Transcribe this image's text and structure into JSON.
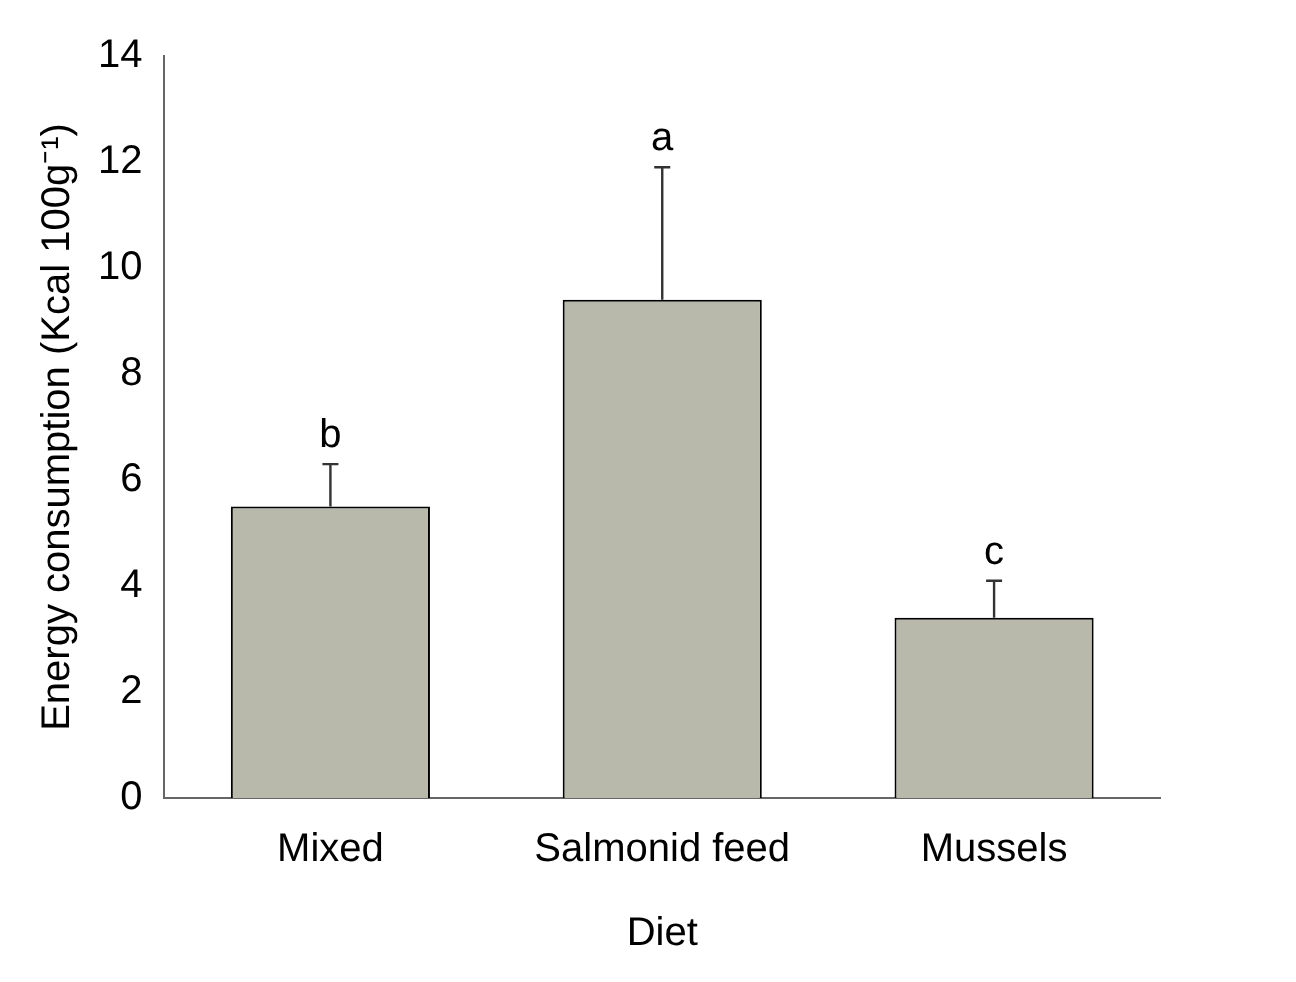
{
  "chart_data": {
    "type": "bar",
    "xlabel": "Diet",
    "ylabel": "Energy consumption (Kcal 100g⁻¹)",
    "categories": [
      "Mixed",
      "Salmonid feed",
      "Mussels"
    ],
    "values": [
      5.5,
      9.4,
      3.4
    ],
    "color": "#b8b8ab",
    "errors": [
      [
        5.5,
        6.3
      ],
      [
        9.4,
        11.9
      ],
      [
        3.4,
        4.1
      ]
    ],
    "annotations": [
      {
        "text": "b",
        "x": "Mixed",
        "y": 6.3
      },
      {
        "text": "a",
        "x": "Salmonid feed",
        "y": 11.9
      },
      {
        "text": "c",
        "x": "Mussels",
        "y": 4.1
      }
    ],
    "ylim": [
      0,
      14
    ],
    "yticks": [
      0,
      2,
      4,
      6,
      8,
      10,
      12,
      14
    ],
    "grid": false,
    "legend": false
  }
}
